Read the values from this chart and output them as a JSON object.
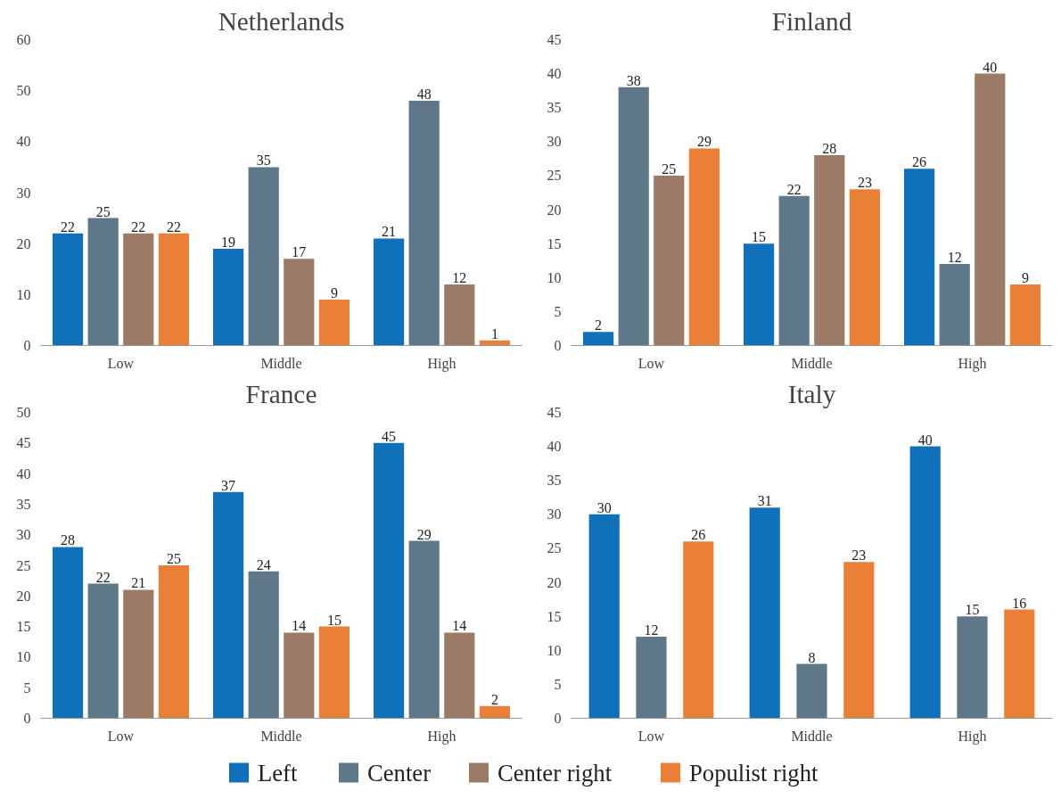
{
  "chart_data": [
    {
      "type": "bar",
      "title": "Netherlands",
      "categories": [
        "Low",
        "Middle",
        "High"
      ],
      "ylim": [
        0,
        60
      ],
      "yticks": [
        0,
        10,
        20,
        30,
        40,
        50,
        60
      ],
      "data_labels": true,
      "grid": false,
      "legend": "bottom",
      "series": [
        {
          "name": "Left",
          "color": "#1170ba",
          "values": [
            22,
            19,
            21
          ]
        },
        {
          "name": "Center",
          "color": "#5f7889",
          "values": [
            25,
            35,
            48
          ]
        },
        {
          "name": "Center right",
          "color": "#9b7b66",
          "values": [
            22,
            17,
            12
          ]
        },
        {
          "name": "Populist right",
          "color": "#ea7f37",
          "values": [
            22,
            9,
            1
          ]
        }
      ]
    },
    {
      "type": "bar",
      "title": "Finland",
      "categories": [
        "Low",
        "Middle",
        "High"
      ],
      "ylim": [
        0,
        45
      ],
      "yticks": [
        0,
        5,
        10,
        15,
        20,
        25,
        30,
        35,
        40,
        45
      ],
      "data_labels": true,
      "grid": false,
      "series": [
        {
          "color": "#1170ba",
          "values": [
            2,
            15,
            26
          ]
        },
        {
          "color": "#5f7889",
          "values": [
            38,
            22,
            12
          ]
        },
        {
          "color": "#9b7b66",
          "values": [
            25,
            28,
            40
          ]
        },
        {
          "color": "#ea7f37",
          "values": [
            29,
            23,
            9
          ]
        }
      ]
    },
    {
      "type": "bar",
      "title": "France",
      "categories": [
        "Low",
        "Middle",
        "High"
      ],
      "ylim": [
        0,
        50
      ],
      "yticks": [
        0,
        5,
        10,
        15,
        20,
        25,
        30,
        35,
        40,
        45,
        50
      ],
      "data_labels": true,
      "grid": false,
      "series": [
        {
          "color": "#1170ba",
          "values": [
            28,
            37,
            45
          ]
        },
        {
          "color": "#5f7889",
          "values": [
            22,
            24,
            29
          ]
        },
        {
          "color": "#9b7b66",
          "values": [
            21,
            14,
            14
          ]
        },
        {
          "color": "#ea7f37",
          "values": [
            25,
            15,
            2
          ]
        }
      ]
    },
    {
      "type": "bar",
      "title": "Italy",
      "categories": [
        "Low",
        "Middle",
        "High"
      ],
      "ylim": [
        0,
        45
      ],
      "yticks": [
        0,
        5,
        10,
        15,
        20,
        25,
        30,
        35,
        40,
        45
      ],
      "data_labels": true,
      "grid": false,
      "series": [
        {
          "color": "#1170ba",
          "values": [
            30,
            31,
            40
          ]
        },
        {
          "color": "#5f7889",
          "values": [
            12,
            8,
            15
          ]
        },
        {
          "color": "#ea7f37",
          "values": [
            26,
            23,
            16
          ]
        }
      ]
    }
  ]
}
